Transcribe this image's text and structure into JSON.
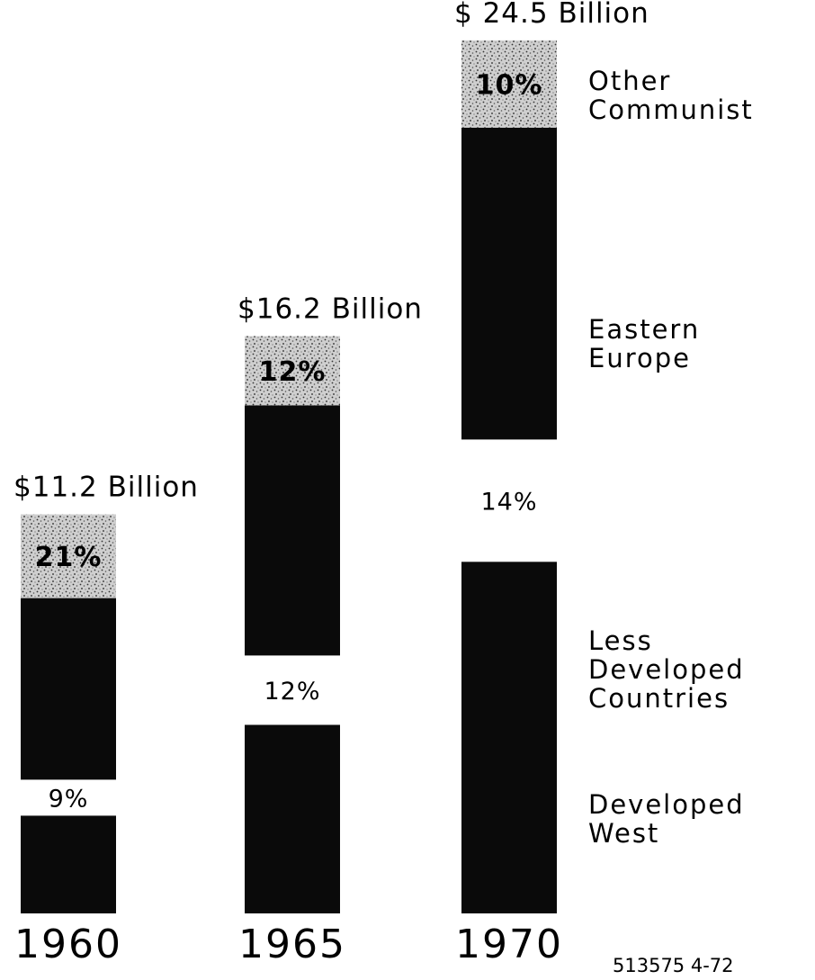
{
  "chart_data": {
    "type": "bar",
    "stacked": true,
    "categories": [
      "1960",
      "1965",
      "1970"
    ],
    "totals": [
      11.2,
      16.2,
      24.5
    ],
    "total_labels": [
      "$11.2 Billion",
      "$16.2 Billion",
      "$ 24.5 Billion"
    ],
    "series": [
      {
        "name": "Developed West",
        "label_lines": [
          "Developed",
          "West"
        ],
        "share_pct": [
          null,
          null,
          null
        ],
        "color": "#0a0a0a",
        "pattern": "solid"
      },
      {
        "name": "Less Developed Countries",
        "label_lines": [
          "Less",
          "Developed",
          "Countries"
        ],
        "share_pct": [
          9,
          12,
          14
        ],
        "share_labels": [
          "9%",
          "12%",
          "14%"
        ],
        "color": "#ffffff",
        "pattern": "blank"
      },
      {
        "name": "Eastern Europe",
        "label_lines": [
          "Eastern",
          "Europe"
        ],
        "share_pct": [
          null,
          null,
          null
        ],
        "color": "#0a0a0a",
        "pattern": "solid"
      },
      {
        "name": "Other Communist",
        "label_lines": [
          "Other",
          "Communist"
        ],
        "share_pct": [
          21,
          12,
          10
        ],
        "share_labels": [
          "21%",
          "12%",
          "10%"
        ],
        "color": "#bdbdbd",
        "pattern": "stipple"
      }
    ],
    "legend": "right",
    "grid": false
  },
  "footnote": "513575 4-72"
}
